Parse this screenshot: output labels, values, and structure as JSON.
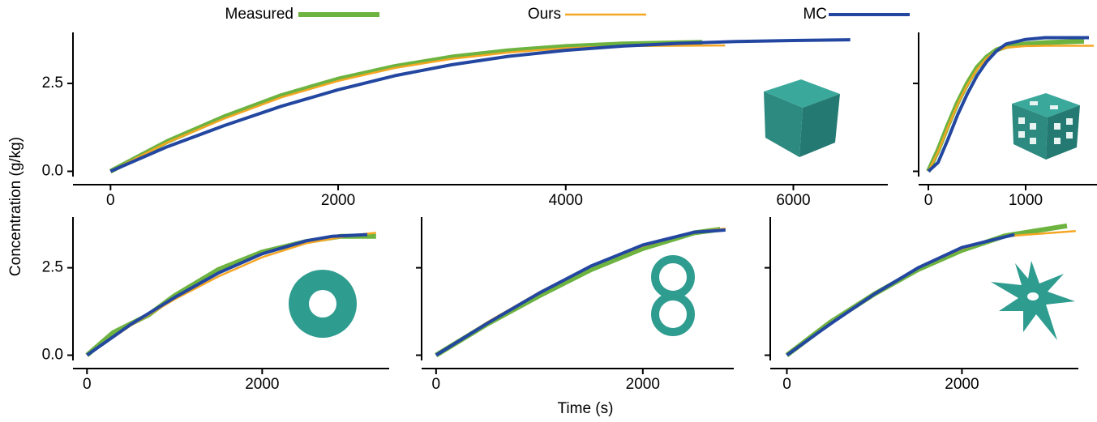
{
  "legend": [
    {
      "name": "Measured",
      "color": "#6db33f",
      "width": 6
    },
    {
      "name": "Ours",
      "color": "#f5a623",
      "width": 2.5
    },
    {
      "name": "MC",
      "color": "#2347a0",
      "width": 4
    }
  ],
  "xlabel": "Time (s)",
  "ylabel": "Concentration (g/kg)",
  "chart_data": [
    {
      "type": "line",
      "xlim": [
        -330,
        6830
      ],
      "ylim": [
        -0.15,
        3.95
      ],
      "xticks": [
        0,
        2000,
        4000,
        6000
      ],
      "yticks": [
        {
          "value": 0,
          "label": "0.0"
        },
        2.5
      ],
      "ytick_labels": true,
      "series": [
        {
          "x": [
            0,
            500,
            1000,
            1500,
            2000,
            2500,
            3000,
            3500,
            4000,
            4500,
            5200
          ],
          "values": [
            0,
            0.85,
            1.55,
            2.15,
            2.62,
            2.98,
            3.25,
            3.43,
            3.55,
            3.62,
            3.67
          ]
        },
        {
          "x": [
            0,
            500,
            1000,
            1500,
            2000,
            2500,
            3000,
            3500,
            4000,
            4500,
            5400
          ],
          "values": [
            0,
            0.82,
            1.5,
            2.1,
            2.57,
            2.94,
            3.2,
            3.38,
            3.5,
            3.56,
            3.58
          ]
        },
        {
          "x": [
            0,
            500,
            1000,
            1500,
            2000,
            2500,
            3000,
            3500,
            4000,
            4500,
            5000,
            5500,
            6000,
            6500
          ],
          "values": [
            0,
            0.7,
            1.3,
            1.85,
            2.32,
            2.72,
            3.03,
            3.27,
            3.44,
            3.56,
            3.64,
            3.69,
            3.72,
            3.74
          ]
        }
      ]
    },
    {
      "type": "line",
      "xlim": [
        -100,
        1750
      ],
      "ylim": [
        -0.15,
        3.95
      ],
      "xticks": [
        0,
        1000
      ],
      "yticks": [
        0,
        2.5
      ],
      "ytick_labels": false,
      "series": [
        {
          "x": [
            0,
            100,
            200,
            300,
            400,
            500,
            600,
            700,
            800,
            1000,
            1200,
            1400,
            1600
          ],
          "values": [
            0,
            0.6,
            1.3,
            1.95,
            2.5,
            2.95,
            3.25,
            3.45,
            3.55,
            3.62,
            3.66,
            3.68,
            3.7
          ]
        },
        {
          "x": [
            0,
            100,
            200,
            300,
            400,
            500,
            600,
            700,
            800,
            1000,
            1200,
            1400,
            1600,
            1700
          ],
          "values": [
            0,
            0.55,
            1.25,
            1.9,
            2.45,
            2.9,
            3.22,
            3.42,
            3.52,
            3.56,
            3.57,
            3.57,
            3.57,
            3.57
          ]
        },
        {
          "x": [
            0,
            100,
            200,
            300,
            400,
            500,
            600,
            700,
            800,
            1000,
            1200,
            1400,
            1650
          ],
          "values": [
            0,
            0.25,
            0.9,
            1.6,
            2.2,
            2.72,
            3.12,
            3.42,
            3.62,
            3.75,
            3.8,
            3.8,
            3.8
          ]
        }
      ]
    },
    {
      "type": "line",
      "xlim": [
        -160,
        3450
      ],
      "ylim": [
        -0.15,
        3.95
      ],
      "xticks": [
        0,
        2000
      ],
      "yticks": [
        {
          "value": 0,
          "label": "0.0"
        },
        2.5
      ],
      "ytick_labels": true,
      "series": [
        {
          "x": [
            0,
            300,
            700,
            1000,
            1500,
            2000,
            2500,
            2900,
            3300
          ],
          "values": [
            0,
            0.65,
            1.15,
            1.7,
            2.45,
            2.95,
            3.25,
            3.4,
            3.4
          ]
        },
        {
          "x": [
            0,
            500,
            1000,
            1500,
            2000,
            2500,
            3000,
            3300
          ],
          "values": [
            0,
            0.85,
            1.6,
            2.25,
            2.8,
            3.2,
            3.42,
            3.5
          ]
        },
        {
          "x": [
            0,
            500,
            1000,
            1500,
            2000,
            2500,
            2800,
            3200
          ],
          "values": [
            0,
            0.88,
            1.65,
            2.35,
            2.9,
            3.27,
            3.4,
            3.45
          ]
        }
      ]
    },
    {
      "type": "line",
      "xlim": [
        -140,
        2880
      ],
      "ylim": [
        -0.15,
        3.95
      ],
      "xticks": [
        0,
        2000
      ],
      "yticks": [
        0,
        2.5
      ],
      "ytick_labels": false,
      "series": [
        {
          "x": [
            0,
            500,
            1000,
            1500,
            2000,
            2500,
            2750
          ],
          "values": [
            0,
            0.9,
            1.7,
            2.45,
            3.05,
            3.5,
            3.6
          ]
        },
        {
          "x": [
            0,
            500,
            1000,
            1500,
            2000,
            2500,
            2800
          ],
          "values": [
            0,
            0.95,
            1.8,
            2.55,
            3.12,
            3.52,
            3.62
          ]
        },
        {
          "x": [
            0,
            500,
            1000,
            1500,
            2000,
            2500,
            2800
          ],
          "values": [
            0,
            0.92,
            1.78,
            2.55,
            3.15,
            3.52,
            3.58
          ]
        }
      ]
    },
    {
      "type": "line",
      "xlim": [
        -190,
        3330
      ],
      "ylim": [
        -0.15,
        3.95
      ],
      "xticks": [
        0,
        2000
      ],
      "yticks": [
        0,
        2.5
      ],
      "ytick_labels": false,
      "series": [
        {
          "x": [
            0,
            500,
            1000,
            1500,
            2000,
            2500,
            3200
          ],
          "values": [
            0,
            0.95,
            1.75,
            2.45,
            3.0,
            3.42,
            3.7
          ]
        },
        {
          "x": [
            0,
            500,
            1000,
            1500,
            2000,
            2500,
            3300
          ],
          "values": [
            0,
            0.92,
            1.75,
            2.5,
            3.05,
            3.4,
            3.55
          ]
        },
        {
          "x": [
            0,
            500,
            1000,
            1500,
            2000,
            2600
          ],
          "values": [
            0,
            0.9,
            1.75,
            2.5,
            3.08,
            3.45
          ]
        }
      ]
    }
  ]
}
